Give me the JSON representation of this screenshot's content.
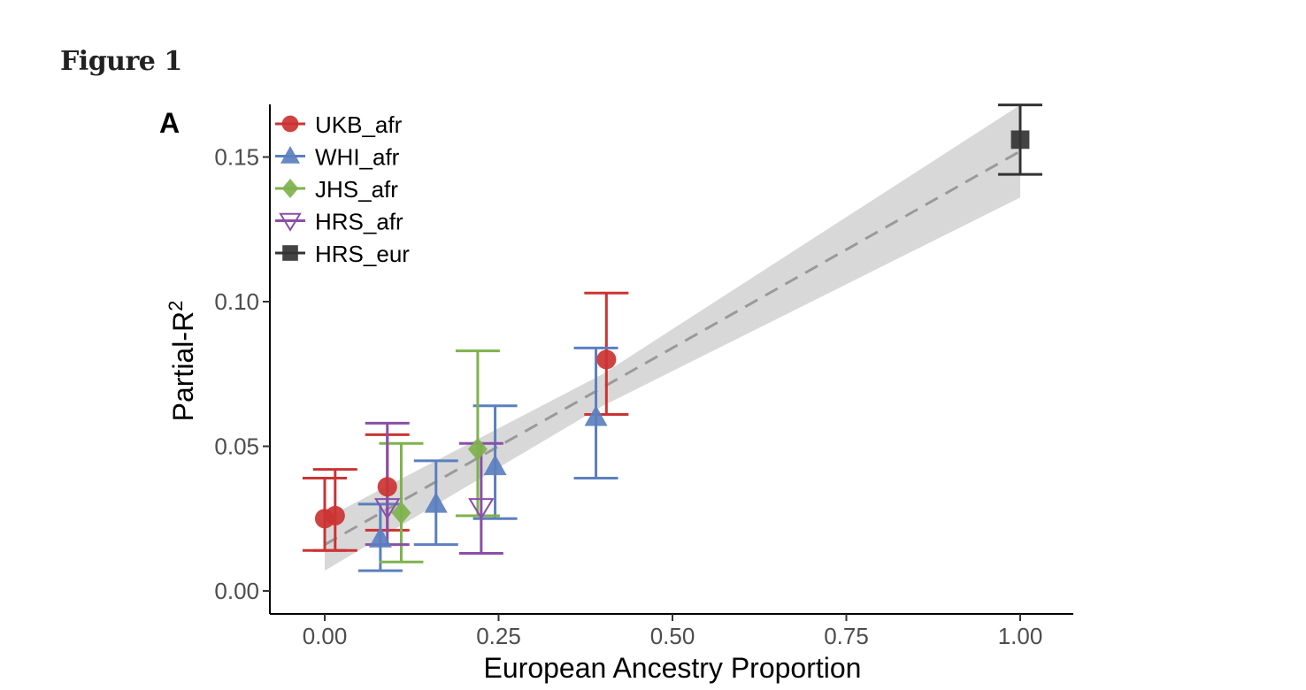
{
  "figure_title": "Figure 1",
  "colors": {
    "UKB_afr": "#cc3333",
    "WHI_afr": "#5b7fbf",
    "JHS_afr": "#7fb24d",
    "HRS_afr": "#8a4fa8",
    "HRS_eur": "#333333",
    "ci_band": "#d6d6d6",
    "fit_line": "#9a9a9a"
  },
  "chart_data": {
    "type": "scatter",
    "panel_label": "A",
    "xlabel": "European Ancestry Proportion",
    "ylabel": "Partial-R",
    "ylabel_superscript": "2",
    "xlim": [
      -0.08,
      1.08
    ],
    "ylim": [
      -0.008,
      0.168
    ],
    "x_ticks": [
      0.0,
      0.25,
      0.5,
      0.75,
      1.0
    ],
    "x_tick_labels": [
      "0.00",
      "0.25",
      "0.50",
      "0.75",
      "1.00"
    ],
    "y_ticks": [
      0.0,
      0.05,
      0.1,
      0.15
    ],
    "y_tick_labels": [
      "0.00",
      "0.05",
      "0.10",
      "0.15"
    ],
    "legend_position": "top-left",
    "grid": false,
    "fit": {
      "line": [
        [
          0.0,
          0.016
        ],
        [
          1.0,
          0.152
        ]
      ],
      "band_upper": [
        [
          0.0,
          0.025
        ],
        [
          0.4,
          0.075
        ],
        [
          1.0,
          0.168
        ]
      ],
      "band_lower": [
        [
          0.0,
          0.007
        ],
        [
          0.4,
          0.064
        ],
        [
          1.0,
          0.136
        ]
      ]
    },
    "series": [
      {
        "name": "UKB_afr",
        "marker": "circle",
        "points": [
          {
            "x": 0.0,
            "y": 0.025,
            "lo": 0.014,
            "hi": 0.039
          },
          {
            "x": 0.015,
            "y": 0.026,
            "lo": 0.014,
            "hi": 0.042
          },
          {
            "x": 0.09,
            "y": 0.036,
            "lo": 0.021,
            "hi": 0.054
          },
          {
            "x": 0.405,
            "y": 0.08,
            "lo": 0.061,
            "hi": 0.103
          }
        ]
      },
      {
        "name": "WHI_afr",
        "marker": "triangle",
        "points": [
          {
            "x": 0.08,
            "y": 0.018,
            "lo": 0.007,
            "hi": 0.03
          },
          {
            "x": 0.16,
            "y": 0.03,
            "lo": 0.016,
            "hi": 0.045
          },
          {
            "x": 0.245,
            "y": 0.043,
            "lo": 0.025,
            "hi": 0.064
          },
          {
            "x": 0.39,
            "y": 0.06,
            "lo": 0.039,
            "hi": 0.084
          }
        ]
      },
      {
        "name": "JHS_afr",
        "marker": "diamond",
        "points": [
          {
            "x": 0.11,
            "y": 0.027,
            "lo": 0.01,
            "hi": 0.051
          },
          {
            "x": 0.22,
            "y": 0.049,
            "lo": 0.026,
            "hi": 0.083
          }
        ]
      },
      {
        "name": "HRS_afr",
        "marker": "triangle-down",
        "points": [
          {
            "x": 0.09,
            "y": 0.029,
            "lo": 0.016,
            "hi": 0.058
          },
          {
            "x": 0.225,
            "y": 0.029,
            "lo": 0.013,
            "hi": 0.051
          }
        ]
      },
      {
        "name": "HRS_eur",
        "marker": "square",
        "points": [
          {
            "x": 1.0,
            "y": 0.156,
            "lo": 0.144,
            "hi": 0.168
          }
        ]
      }
    ]
  }
}
